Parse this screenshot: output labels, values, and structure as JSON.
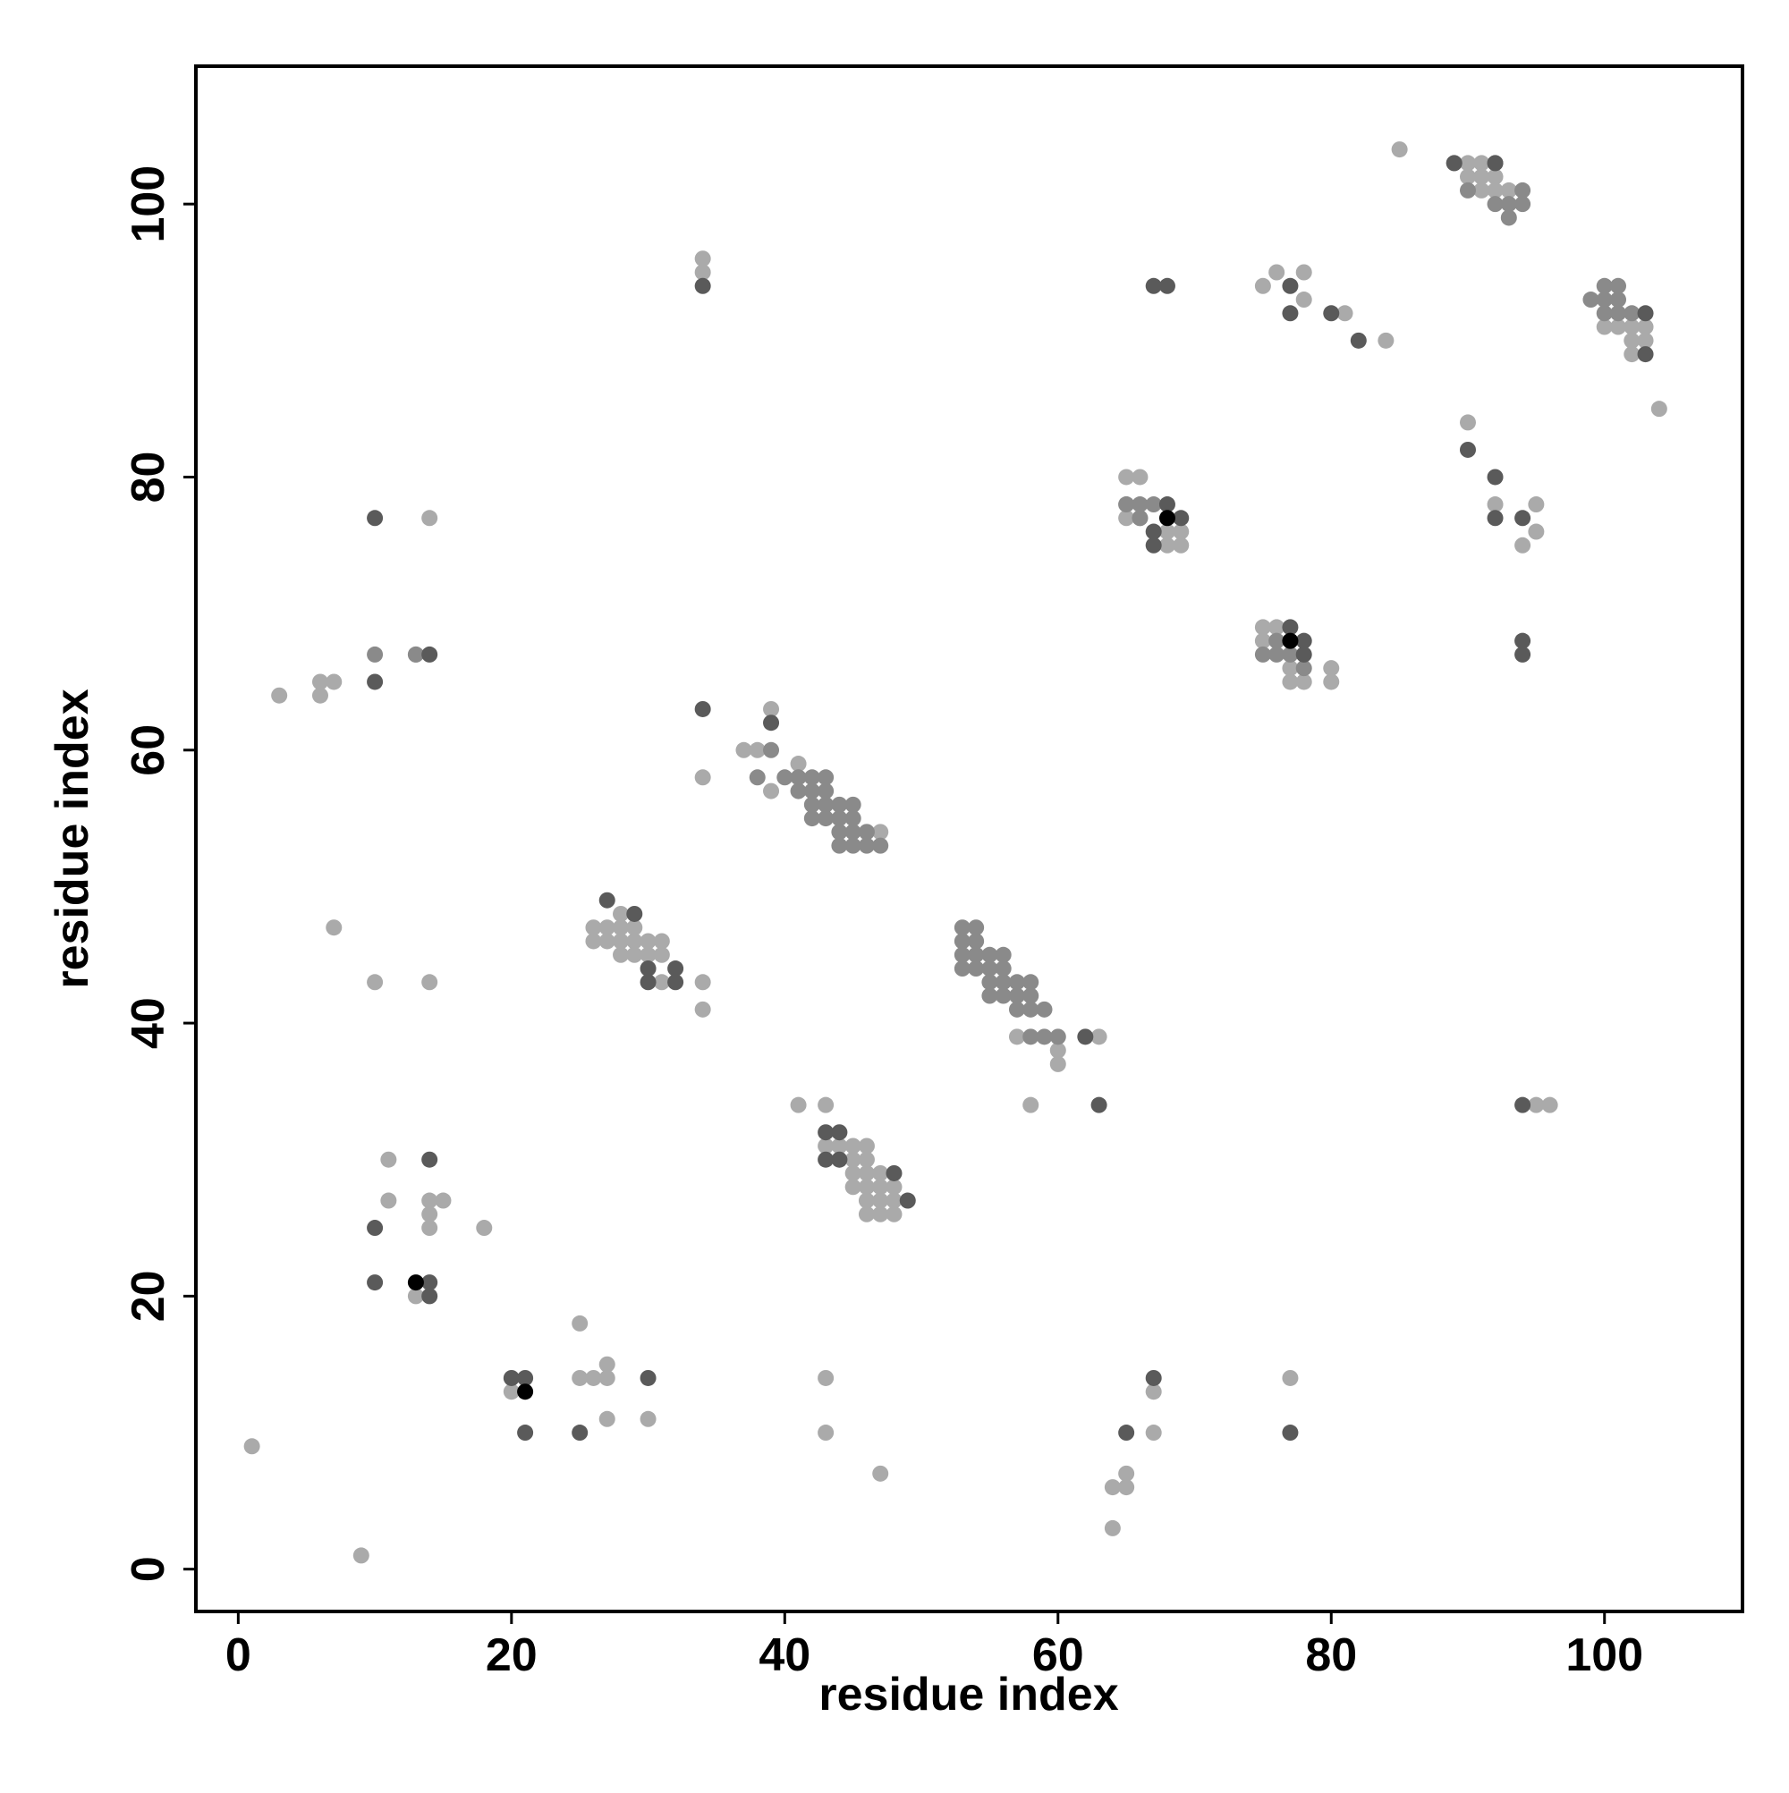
{
  "chart_data": {
    "type": "scatter",
    "x_label": "residue index",
    "y_label": "residue index",
    "xlim": [
      -3.1,
      110.1
    ],
    "ylim": [
      -3.1,
      110.1
    ],
    "xticks": [
      0,
      20,
      40,
      60,
      80,
      100
    ],
    "yticks": [
      0,
      20,
      40,
      60,
      80,
      100
    ],
    "grid": false,
    "series": [
      {
        "color": "#aaaaaa",
        "x": [
          1,
          3,
          6,
          6,
          7,
          7,
          9,
          10,
          14,
          14,
          13,
          11,
          11,
          14,
          15,
          14,
          14,
          18,
          13,
          20,
          25,
          25,
          26,
          27,
          27,
          27,
          30,
          34,
          34,
          34,
          34,
          34,
          37,
          38,
          39,
          39,
          41,
          43,
          43,
          43,
          47,
          41,
          26,
          27,
          28,
          29,
          26,
          27,
          28,
          29,
          30,
          31,
          28,
          28,
          29,
          30,
          31,
          31,
          43,
          44,
          45,
          46,
          44,
          45,
          46,
          45,
          46,
          47,
          45,
          46,
          47,
          48,
          46,
          47,
          48,
          46,
          47,
          48,
          47,
          46,
          58,
          57,
          60,
          63,
          60,
          64,
          64,
          65,
          65,
          67,
          67,
          65,
          66,
          65,
          65,
          66,
          68,
          69,
          68,
          69,
          75,
          76,
          75,
          77,
          77,
          78,
          80,
          80,
          77,
          75,
          76,
          78,
          78,
          81,
          84,
          85,
          90,
          92,
          94,
          95,
          95,
          95,
          96,
          90,
          91,
          90,
          91,
          92,
          91,
          92,
          93,
          101,
          102,
          103,
          102,
          103,
          102,
          100,
          104
        ],
        "values": [
          9,
          64,
          64,
          65,
          65,
          47,
          1,
          43,
          43,
          77,
          67,
          30,
          27,
          27,
          27,
          26,
          25,
          25,
          20,
          13,
          18,
          14,
          14,
          14,
          15,
          11,
          11,
          96,
          95,
          58,
          43,
          41,
          60,
          60,
          63,
          57,
          34,
          34,
          14,
          10,
          7,
          59,
          47,
          47,
          47,
          47,
          46,
          46,
          46,
          46,
          46,
          46,
          48,
          45,
          45,
          45,
          45,
          43,
          31,
          31,
          31,
          31,
          30,
          30,
          30,
          29,
          29,
          29,
          28,
          28,
          28,
          28,
          27,
          27,
          27,
          26,
          26,
          26,
          54,
          54,
          34,
          39,
          38,
          39,
          37,
          3,
          6,
          6,
          7,
          13,
          10,
          80,
          80,
          78,
          77,
          77,
          76,
          76,
          75,
          75,
          69,
          69,
          68,
          66,
          65,
          65,
          65,
          66,
          14,
          94,
          95,
          95,
          93,
          92,
          90,
          104,
          84,
          78,
          75,
          78,
          76,
          34,
          34,
          103,
          103,
          102,
          102,
          102,
          101,
          101,
          101,
          91,
          91,
          91,
          90,
          90,
          89,
          91,
          85
        ]
      },
      {
        "color": "#8a8a8a",
        "x": [
          10,
          13,
          41,
          42,
          43,
          41,
          42,
          43,
          42,
          43,
          44,
          42,
          43,
          44,
          45,
          44,
          45,
          46,
          44,
          45,
          46,
          47,
          45,
          39,
          38,
          40,
          53,
          54,
          53,
          54,
          53,
          54,
          55,
          56,
          53,
          54,
          55,
          56,
          55,
          56,
          57,
          58,
          55,
          56,
          57,
          58,
          57,
          58,
          59,
          58,
          59,
          60,
          66,
          67,
          66,
          65,
          75,
          76,
          77,
          78,
          76,
          99,
          100,
          100,
          101,
          101,
          100,
          101,
          102,
          89,
          92,
          90,
          92,
          93,
          94,
          93,
          94
        ],
        "values": [
          67,
          67,
          58,
          58,
          58,
          57,
          57,
          57,
          56,
          56,
          56,
          55,
          55,
          55,
          56,
          54,
          54,
          54,
          53,
          53,
          53,
          53,
          55,
          60,
          58,
          58,
          47,
          47,
          46,
          46,
          45,
          45,
          45,
          45,
          44,
          44,
          44,
          44,
          43,
          43,
          43,
          43,
          42,
          42,
          42,
          42,
          41,
          41,
          41,
          39,
          39,
          39,
          78,
          78,
          77,
          78,
          67,
          67,
          67,
          66,
          68,
          93,
          94,
          93,
          94,
          93,
          92,
          92,
          92,
          103,
          103,
          101,
          100,
          100,
          101,
          99,
          100
        ]
      },
      {
        "color": "#5a5a5a",
        "x": [
          10,
          10,
          14,
          14,
          10,
          10,
          14,
          14,
          21,
          20,
          21,
          25,
          30,
          34,
          34,
          39,
          27,
          29,
          30,
          30,
          32,
          32,
          43,
          44,
          43,
          44,
          48,
          49,
          62,
          63,
          67,
          68,
          77,
          77,
          80,
          82,
          67,
          67,
          69,
          68,
          77,
          78,
          78,
          94,
          94,
          94,
          90,
          92,
          92,
          94,
          65,
          67,
          77,
          103,
          103,
          89,
          92
        ],
        "values": [
          77,
          65,
          67,
          30,
          25,
          21,
          21,
          20,
          14,
          14,
          10,
          10,
          14,
          94,
          63,
          62,
          49,
          48,
          44,
          43,
          44,
          43,
          32,
          32,
          30,
          30,
          29,
          27,
          39,
          34,
          94,
          94,
          94,
          92,
          92,
          90,
          76,
          75,
          77,
          78,
          69,
          68,
          67,
          68,
          67,
          34,
          82,
          80,
          77,
          77,
          10,
          14,
          10,
          89,
          92,
          103,
          103
        ]
      },
      {
        "color": "#000000",
        "x": [
          13,
          21,
          68,
          77
        ],
        "values": [
          21,
          13,
          77,
          68
        ]
      }
    ]
  }
}
